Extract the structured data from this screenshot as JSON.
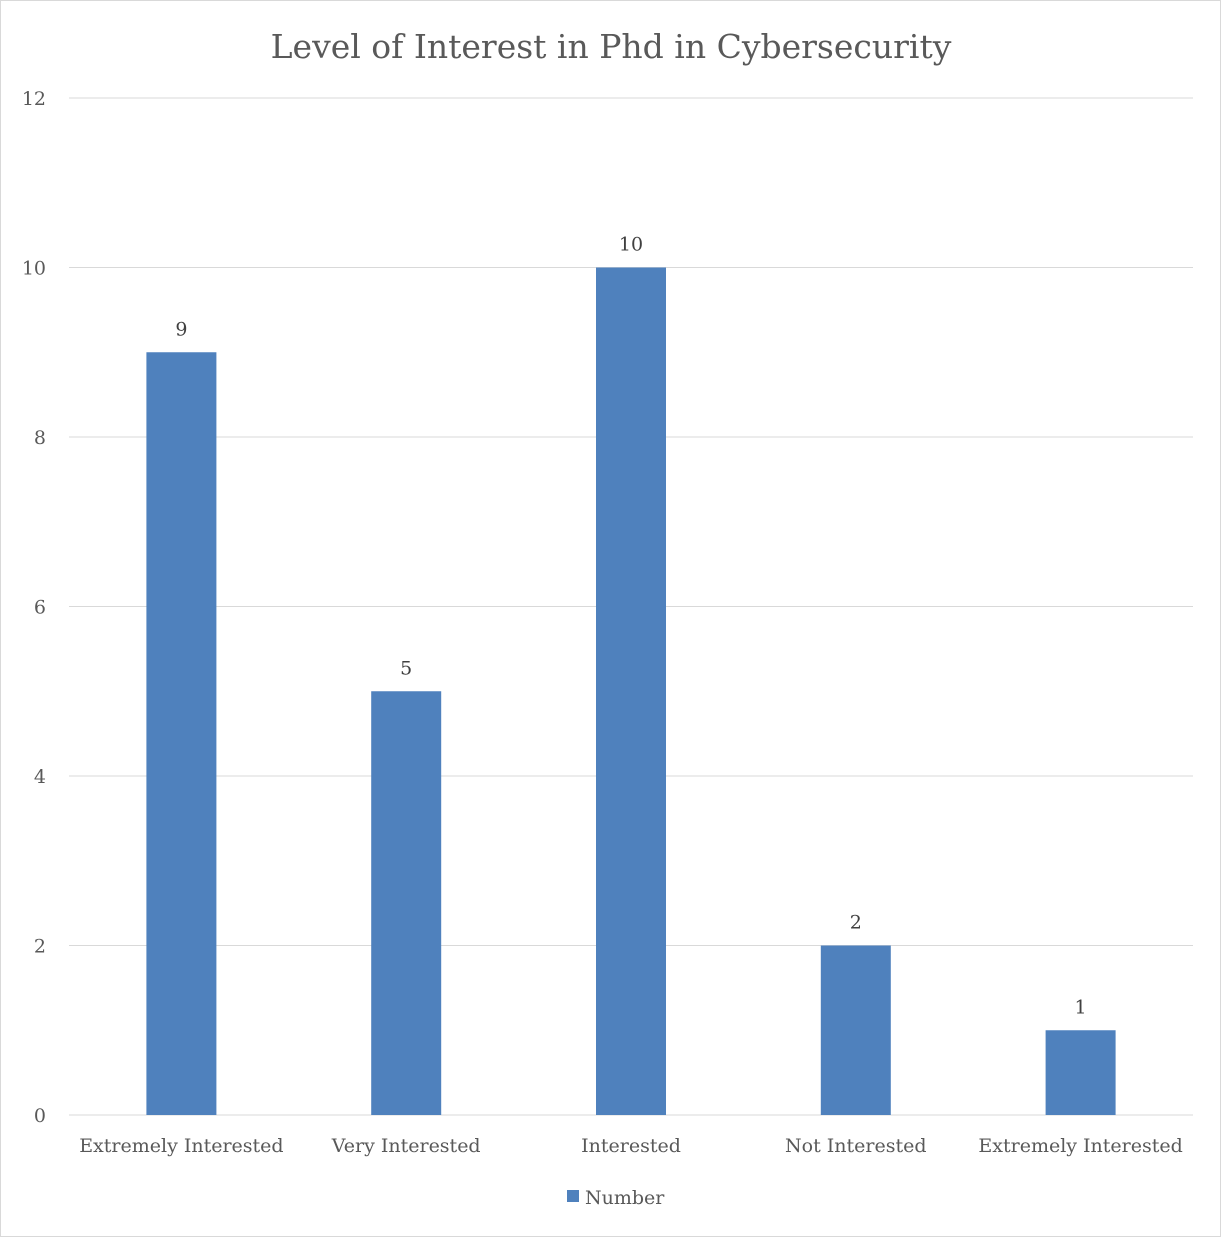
{
  "chart_data": {
    "type": "bar",
    "title": "Level of Interest in Phd in Cybersecurity",
    "categories": [
      "Extremely Interested",
      "Very Interested",
      "Interested",
      "Not Interested",
      "Extremely Interested"
    ],
    "series": [
      {
        "name": "Number",
        "values": [
          9,
          5,
          10,
          2,
          1
        ],
        "color": "#4f81bd"
      }
    ],
    "yticks": [
      "0",
      "2",
      "4",
      "6",
      "8",
      "10",
      "12"
    ],
    "ylim": [
      0,
      12
    ],
    "xlabel": "",
    "ylabel": "",
    "grid": true,
    "legend_position": "bottom",
    "data_labels": [
      "9",
      "5",
      "10",
      "2",
      "1"
    ]
  },
  "colors": {
    "bar": "#4f81bd",
    "grid": "#d9d9d9",
    "text": "#595959"
  }
}
